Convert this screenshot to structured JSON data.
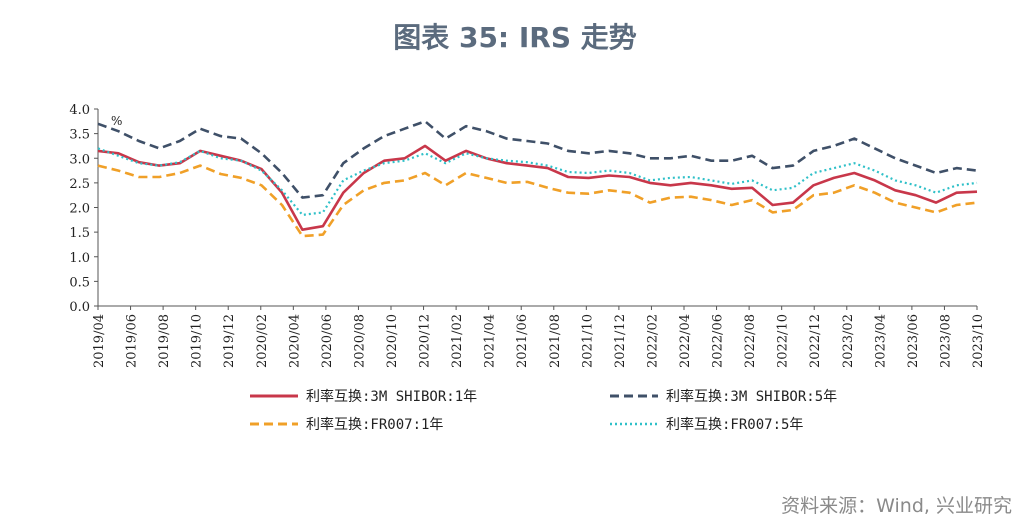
{
  "title": "图表 35: IRS 走势",
  "source": "资料来源：Wind, 兴业研究",
  "chart_data": {
    "type": "line",
    "ylabel": "%",
    "ylim": [
      0.0,
      4.0
    ],
    "yticks": [
      "0.0",
      "0.5",
      "1.0",
      "1.5",
      "2.0",
      "2.5",
      "3.0",
      "3.5",
      "4.0"
    ],
    "xticks": [
      "2019/04",
      "2019/06",
      "2019/08",
      "2019/10",
      "2019/12",
      "2020/02",
      "2020/04",
      "2020/06",
      "2020/08",
      "2020/10",
      "2020/12",
      "2021/02",
      "2021/04",
      "2021/06",
      "2021/08",
      "2021/10",
      "2021/12",
      "2022/02",
      "2022/04",
      "2022/06",
      "2022/08",
      "2022/10",
      "2022/12",
      "2023/02",
      "2023/04",
      "2023/06",
      "2023/08",
      "2023/10"
    ],
    "legend_position": "bottom",
    "series": [
      {
        "name": "利率互换:3M SHIBOR:1年",
        "color": "#c8374a",
        "style": "solid",
        "values": [
          3.15,
          3.1,
          2.92,
          2.85,
          2.9,
          3.15,
          3.05,
          2.95,
          2.78,
          2.3,
          1.55,
          1.62,
          2.3,
          2.7,
          2.95,
          3.0,
          3.25,
          2.95,
          3.15,
          3.0,
          2.9,
          2.85,
          2.8,
          2.62,
          2.6,
          2.65,
          2.62,
          2.5,
          2.45,
          2.5,
          2.45,
          2.38,
          2.4,
          2.05,
          2.1,
          2.45,
          2.6,
          2.7,
          2.55,
          2.35,
          2.25,
          2.1,
          2.3,
          2.32
        ]
      },
      {
        "name": "利率互换:3M SHIBOR:5年",
        "color": "#3f5068",
        "style": "dash",
        "values": [
          3.7,
          3.55,
          3.35,
          3.2,
          3.35,
          3.6,
          3.45,
          3.4,
          3.1,
          2.7,
          2.2,
          2.25,
          2.9,
          3.2,
          3.45,
          3.6,
          3.75,
          3.4,
          3.65,
          3.55,
          3.4,
          3.35,
          3.3,
          3.15,
          3.1,
          3.15,
          3.1,
          3.0,
          3.0,
          3.05,
          2.95,
          2.95,
          3.05,
          2.8,
          2.85,
          3.15,
          3.25,
          3.4,
          3.2,
          3.0,
          2.85,
          2.7,
          2.8,
          2.75
        ]
      },
      {
        "name": "利率互换:FR007:1年",
        "color": "#f0a028",
        "style": "dash",
        "values": [
          2.85,
          2.75,
          2.62,
          2.62,
          2.7,
          2.85,
          2.68,
          2.6,
          2.45,
          2.05,
          1.42,
          1.45,
          2.05,
          2.35,
          2.5,
          2.55,
          2.7,
          2.45,
          2.7,
          2.6,
          2.5,
          2.52,
          2.4,
          2.3,
          2.28,
          2.35,
          2.3,
          2.1,
          2.2,
          2.22,
          2.15,
          2.05,
          2.15,
          1.9,
          1.95,
          2.25,
          2.3,
          2.45,
          2.3,
          2.1,
          2.0,
          1.9,
          2.05,
          2.1
        ]
      },
      {
        "name": "利率互换:FR007:5年",
        "color": "#2fc0c8",
        "style": "dot",
        "values": [
          3.2,
          3.05,
          2.9,
          2.85,
          2.92,
          3.15,
          3.0,
          2.95,
          2.75,
          2.35,
          1.85,
          1.9,
          2.55,
          2.75,
          2.9,
          2.95,
          3.1,
          2.9,
          3.1,
          3.0,
          2.95,
          2.92,
          2.85,
          2.72,
          2.7,
          2.75,
          2.7,
          2.55,
          2.6,
          2.62,
          2.55,
          2.48,
          2.55,
          2.35,
          2.4,
          2.7,
          2.8,
          2.9,
          2.75,
          2.55,
          2.45,
          2.3,
          2.45,
          2.5
        ]
      }
    ]
  }
}
